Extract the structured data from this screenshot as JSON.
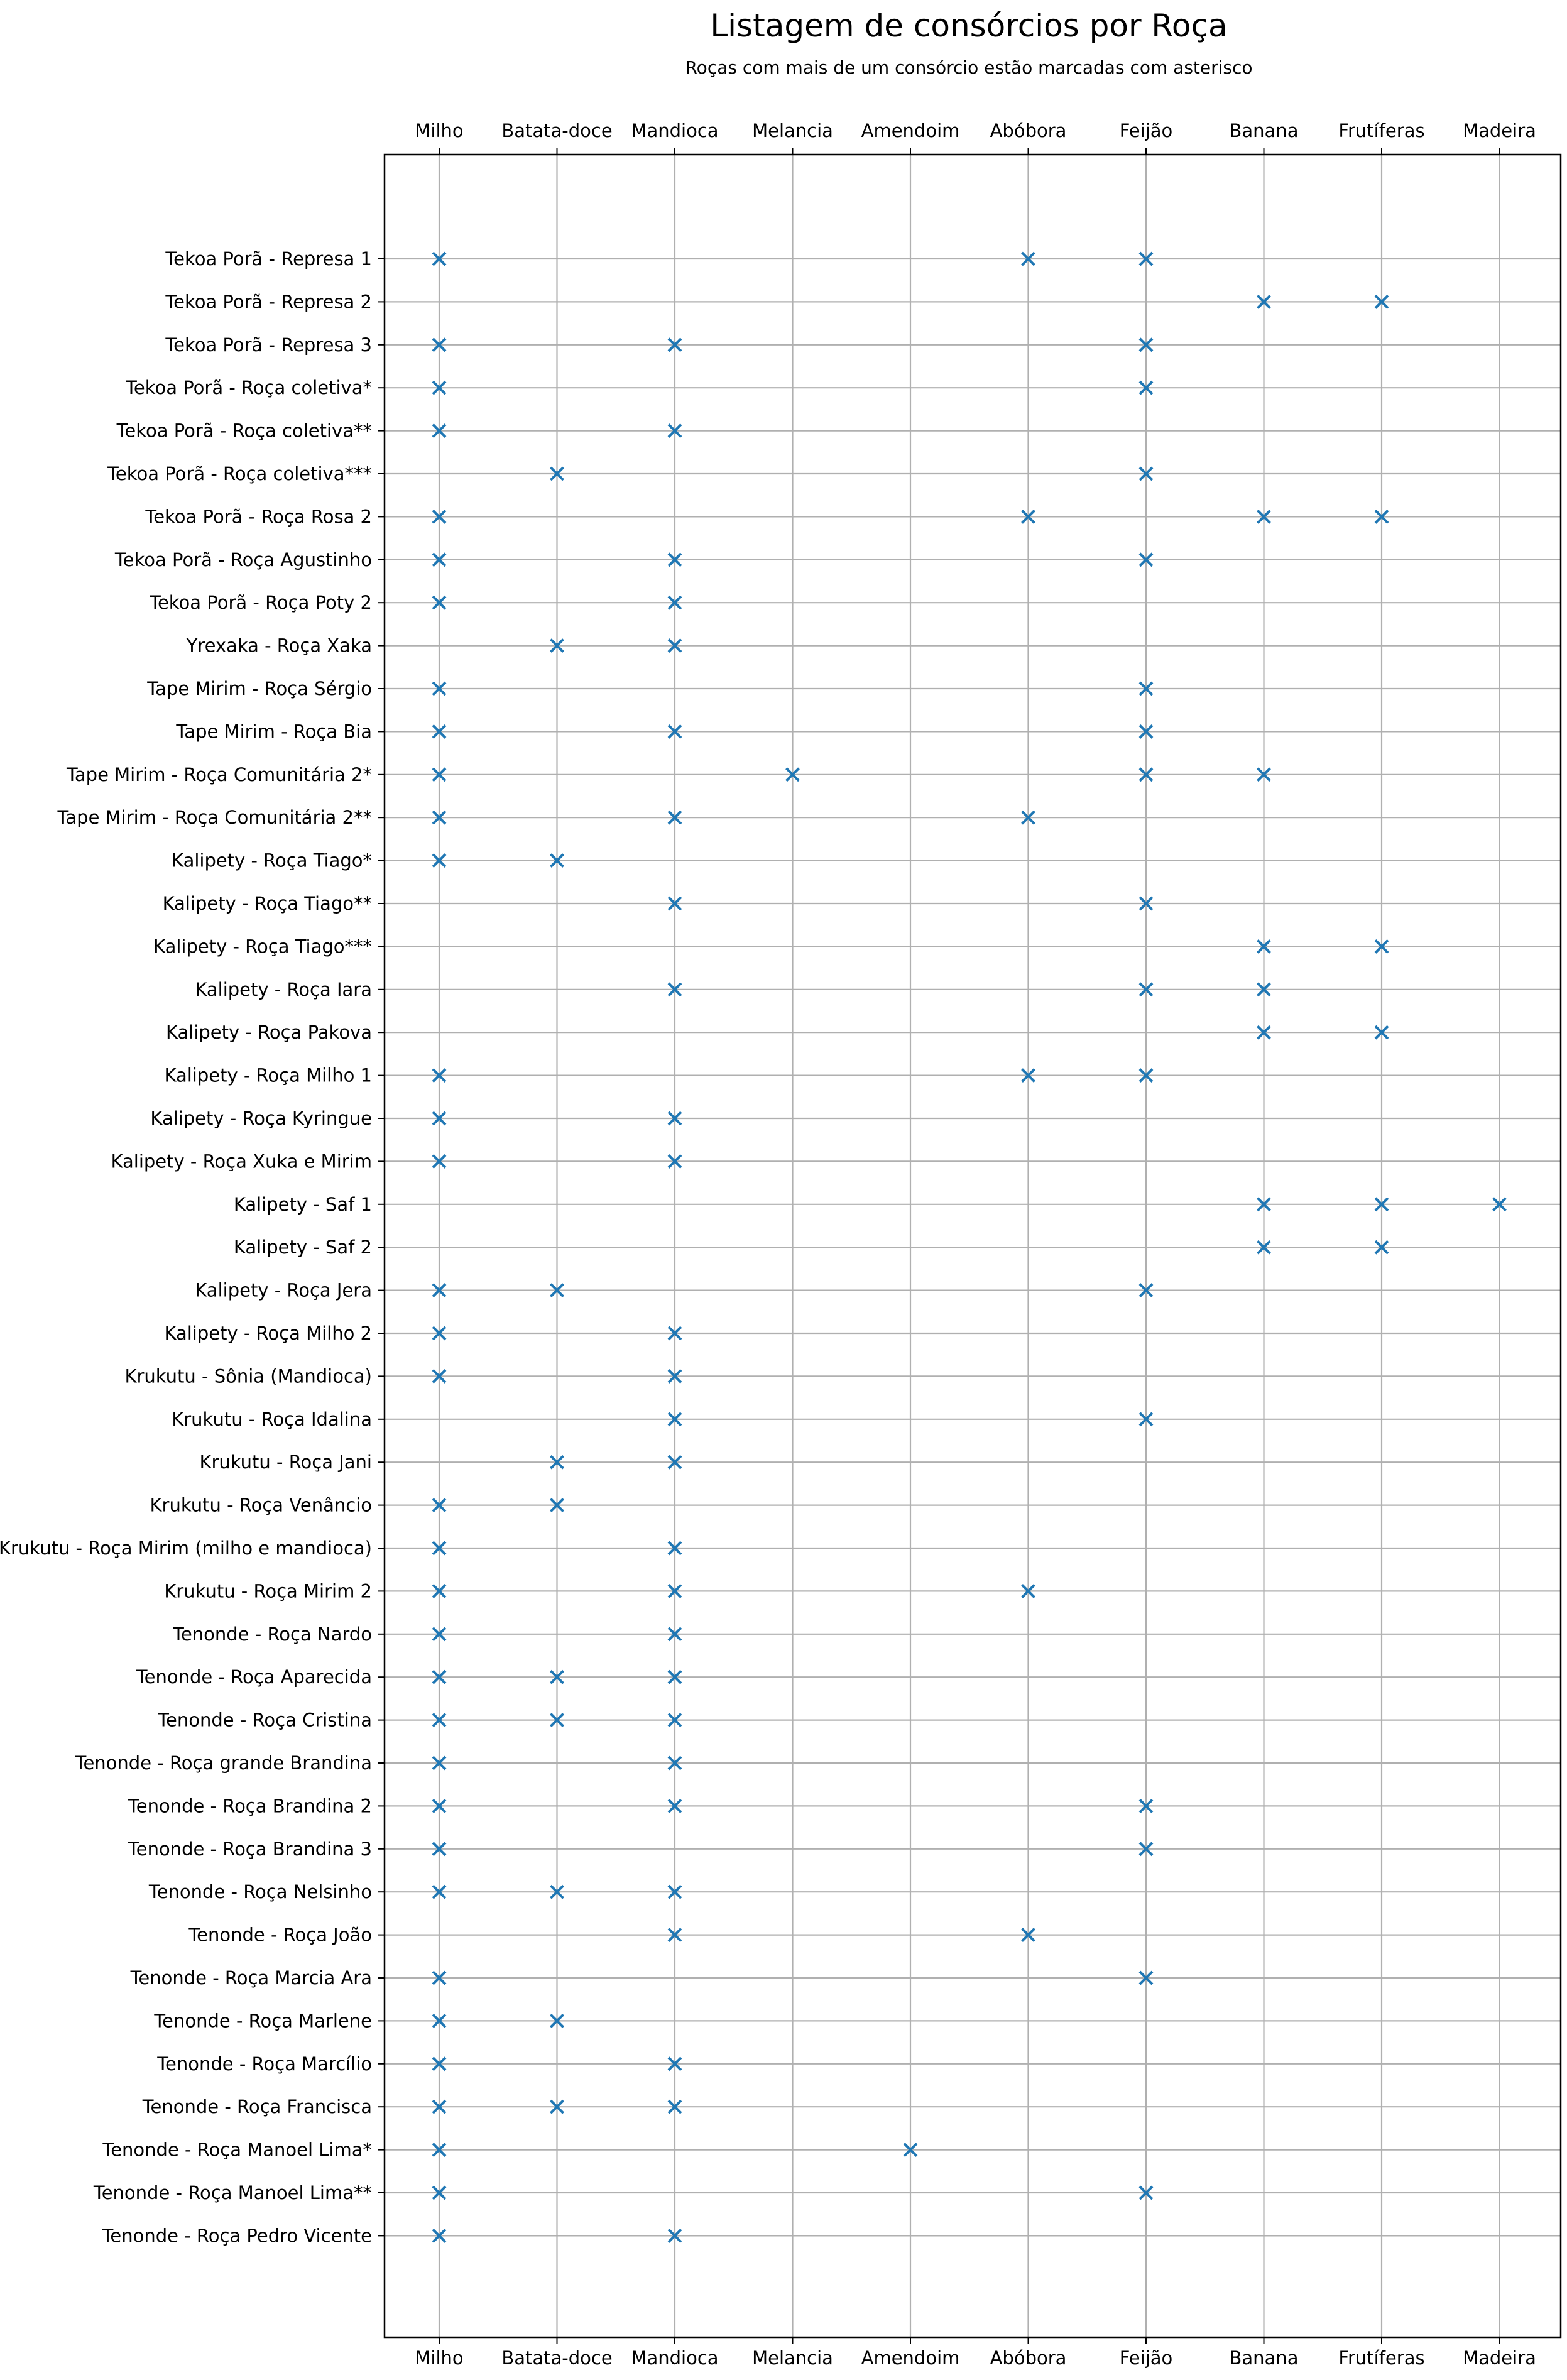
{
  "chart_data": {
    "type": "scatter",
    "title": "Listagem de consórcios por Roça",
    "subtitle": "Roças com mais de um consórcio estão marcadas com asterisco",
    "marker": "x",
    "grid": true,
    "xticks_position": "top-and-bottom",
    "colors": {
      "marker": "#1f77b4",
      "grid": "#b0b0b0",
      "axis": "#000000"
    },
    "categories": [
      "Milho",
      "Batata-doce",
      "Mandioca",
      "Melancia",
      "Amendoim",
      "Abóbora",
      "Feijão",
      "Banana",
      "Frutíferas",
      "Madeira"
    ],
    "rows": [
      {
        "name": "Tekoa Porã - Represa 1",
        "crops": [
          "Milho",
          "Abóbora",
          "Feijão"
        ]
      },
      {
        "name": "Tekoa Porã - Represa 2",
        "crops": [
          "Banana",
          "Frutíferas"
        ]
      },
      {
        "name": "Tekoa Porã - Represa 3",
        "crops": [
          "Milho",
          "Mandioca",
          "Feijão"
        ]
      },
      {
        "name": "Tekoa Porã - Roça coletiva*",
        "crops": [
          "Milho",
          "Feijão"
        ]
      },
      {
        "name": "Tekoa Porã - Roça coletiva**",
        "crops": [
          "Milho",
          "Mandioca"
        ]
      },
      {
        "name": "Tekoa Porã - Roça coletiva***",
        "crops": [
          "Batata-doce",
          "Feijão"
        ]
      },
      {
        "name": "Tekoa Porã - Roça Rosa 2",
        "crops": [
          "Milho",
          "Abóbora",
          "Banana",
          "Frutíferas"
        ]
      },
      {
        "name": "Tekoa Porã - Roça Agustinho",
        "crops": [
          "Milho",
          "Mandioca",
          "Feijão"
        ]
      },
      {
        "name": "Tekoa Porã - Roça Poty 2",
        "crops": [
          "Milho",
          "Mandioca"
        ]
      },
      {
        "name": "Yrexaka - Roça Xaka",
        "crops": [
          "Batata-doce",
          "Mandioca"
        ]
      },
      {
        "name": "Tape Mirim - Roça Sérgio",
        "crops": [
          "Milho",
          "Feijão"
        ]
      },
      {
        "name": "Tape Mirim - Roça Bia",
        "crops": [
          "Milho",
          "Mandioca",
          "Feijão"
        ]
      },
      {
        "name": "Tape Mirim - Roça Comunitária 2*",
        "crops": [
          "Milho",
          "Melancia",
          "Feijão",
          "Banana"
        ]
      },
      {
        "name": "Tape Mirim - Roça Comunitária 2**",
        "crops": [
          "Milho",
          "Mandioca",
          "Abóbora"
        ]
      },
      {
        "name": "Kalipety - Roça Tiago*",
        "crops": [
          "Milho",
          "Batata-doce"
        ]
      },
      {
        "name": "Kalipety - Roça Tiago**",
        "crops": [
          "Mandioca",
          "Feijão"
        ]
      },
      {
        "name": "Kalipety - Roça Tiago***",
        "crops": [
          "Banana",
          "Frutíferas"
        ]
      },
      {
        "name": "Kalipety - Roça Iara",
        "crops": [
          "Mandioca",
          "Feijão",
          "Banana"
        ]
      },
      {
        "name": "Kalipety - Roça Pakova",
        "crops": [
          "Banana",
          "Frutíferas"
        ]
      },
      {
        "name": "Kalipety - Roça Milho 1",
        "crops": [
          "Milho",
          "Abóbora",
          "Feijão"
        ]
      },
      {
        "name": "Kalipety - Roça Kyringue",
        "crops": [
          "Milho",
          "Mandioca"
        ]
      },
      {
        "name": "Kalipety - Roça Xuka e Mirim",
        "crops": [
          "Milho",
          "Mandioca"
        ]
      },
      {
        "name": "Kalipety - Saf 1",
        "crops": [
          "Banana",
          "Frutíferas",
          "Madeira"
        ]
      },
      {
        "name": "Kalipety - Saf 2",
        "crops": [
          "Banana",
          "Frutíferas"
        ]
      },
      {
        "name": "Kalipety - Roça Jera",
        "crops": [
          "Milho",
          "Batata-doce",
          "Feijão"
        ]
      },
      {
        "name": "Kalipety - Roça Milho 2",
        "crops": [
          "Milho",
          "Mandioca"
        ]
      },
      {
        "name": "Krukutu - Sônia (Mandioca)",
        "crops": [
          "Milho",
          "Mandioca"
        ]
      },
      {
        "name": "Krukutu - Roça Idalina",
        "crops": [
          "Mandioca",
          "Feijão"
        ]
      },
      {
        "name": "Krukutu - Roça Jani",
        "crops": [
          "Batata-doce",
          "Mandioca"
        ]
      },
      {
        "name": "Krukutu - Roça Venâncio",
        "crops": [
          "Milho",
          "Batata-doce"
        ]
      },
      {
        "name": "Krukutu - Roça Mirim (milho e mandioca)",
        "crops": [
          "Milho",
          "Mandioca"
        ]
      },
      {
        "name": "Krukutu - Roça Mirim 2",
        "crops": [
          "Milho",
          "Mandioca",
          "Abóbora"
        ]
      },
      {
        "name": "Tenonde - Roça Nardo",
        "crops": [
          "Milho",
          "Mandioca"
        ]
      },
      {
        "name": "Tenonde - Roça Aparecida",
        "crops": [
          "Milho",
          "Batata-doce",
          "Mandioca"
        ]
      },
      {
        "name": "Tenonde - Roça Cristina",
        "crops": [
          "Milho",
          "Batata-doce",
          "Mandioca"
        ]
      },
      {
        "name": "Tenonde - Roça grande Brandina",
        "crops": [
          "Milho",
          "Mandioca"
        ]
      },
      {
        "name": "Tenonde - Roça Brandina 2",
        "crops": [
          "Milho",
          "Mandioca",
          "Feijão"
        ]
      },
      {
        "name": "Tenonde - Roça Brandina 3",
        "crops": [
          "Milho",
          "Feijão"
        ]
      },
      {
        "name": "Tenonde - Roça Nelsinho",
        "crops": [
          "Milho",
          "Batata-doce",
          "Mandioca"
        ]
      },
      {
        "name": "Tenonde - Roça João",
        "crops": [
          "Mandioca",
          "Abóbora"
        ]
      },
      {
        "name": "Tenonde - Roça Marcia Ara",
        "crops": [
          "Milho",
          "Feijão"
        ]
      },
      {
        "name": "Tenonde - Roça Marlene",
        "crops": [
          "Milho",
          "Batata-doce"
        ]
      },
      {
        "name": "Tenonde - Roça Marcílio",
        "crops": [
          "Milho",
          "Mandioca"
        ]
      },
      {
        "name": "Tenonde - Roça Francisca",
        "crops": [
          "Milho",
          "Batata-doce",
          "Mandioca"
        ]
      },
      {
        "name": "Tenonde - Roça Manoel Lima*",
        "crops": [
          "Milho",
          "Amendoim"
        ]
      },
      {
        "name": "Tenonde - Roça Manoel Lima**",
        "crops": [
          "Milho",
          "Feijão"
        ]
      },
      {
        "name": "Tenonde - Roça Pedro Vicente",
        "crops": [
          "Milho",
          "Mandioca"
        ]
      }
    ]
  }
}
